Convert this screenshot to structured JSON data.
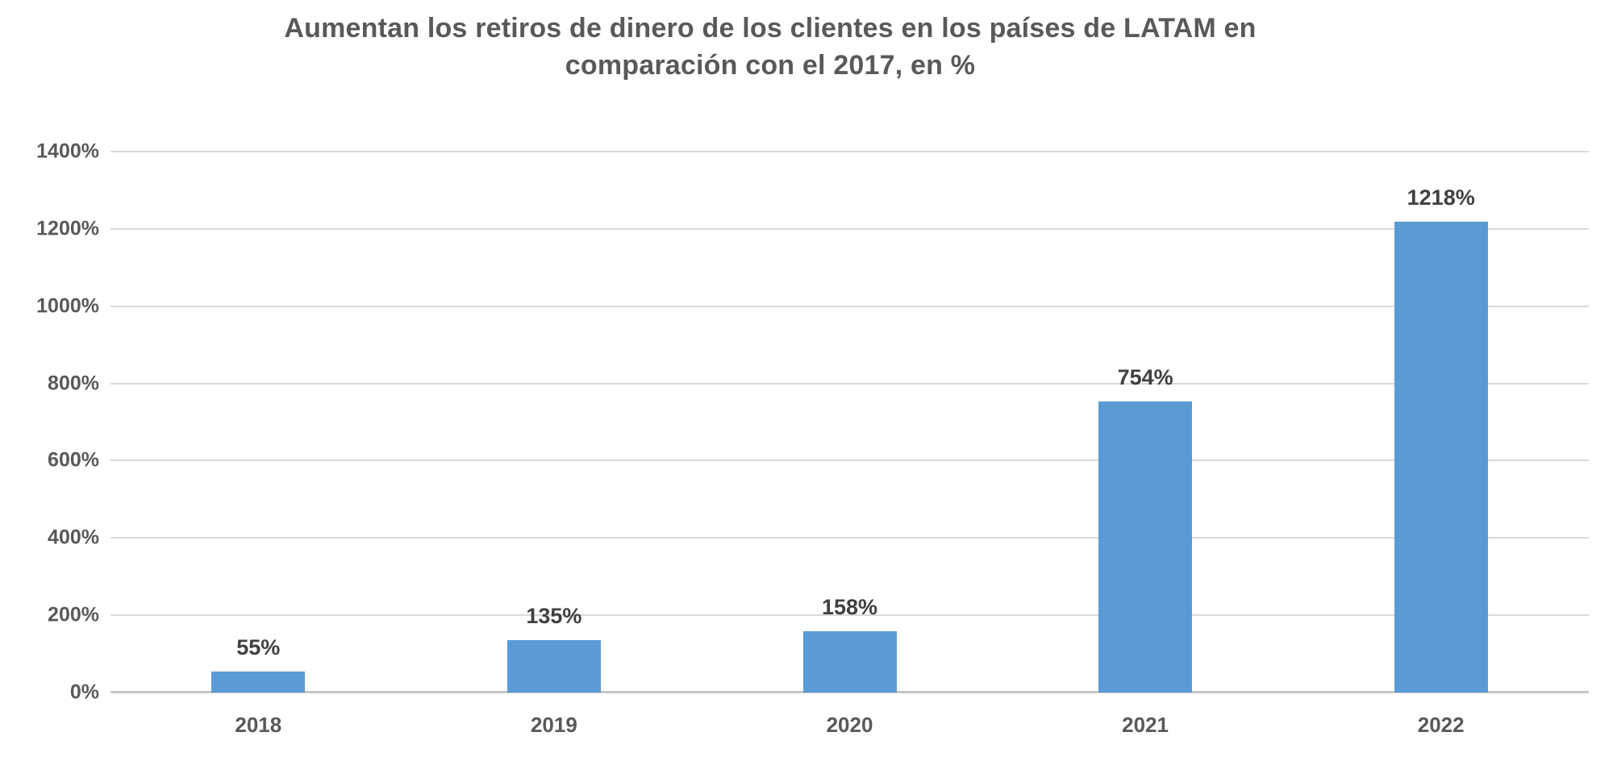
{
  "title_lines": [
    "Aumentan los retiros de dinero de los clientes en los países de LATAM en",
    "comparación con el 2017, en %"
  ],
  "chart_data": {
    "type": "bar",
    "title": "Aumentan los retiros de dinero de los clientes en los países de LATAM en comparación con el 2017, en %",
    "categories": [
      "2018",
      "2019",
      "2020",
      "2021",
      "2022"
    ],
    "values": [
      55,
      135,
      158,
      754,
      1218
    ],
    "data_labels": [
      "55%",
      "135%",
      "158%",
      "754%",
      "1218%"
    ],
    "xlabel": "",
    "ylabel": "",
    "ylim": [
      0,
      1400
    ],
    "y_ticks": [
      0,
      200,
      400,
      600,
      800,
      1000,
      1200,
      1400
    ],
    "y_tick_labels": [
      "0%",
      "200%",
      "400%",
      "600%",
      "800%",
      "1000%",
      "1200%",
      "1400%"
    ],
    "grid": true,
    "legend": false,
    "series_name": "",
    "colors": {
      "bar": "#5B9BD5",
      "gridline": "#D9D9D9",
      "axis_line": "#C6C6C6",
      "title_text": "#595959",
      "tick_text": "#595959",
      "data_label_text": "#404040",
      "background": "#FFFFFF"
    }
  }
}
